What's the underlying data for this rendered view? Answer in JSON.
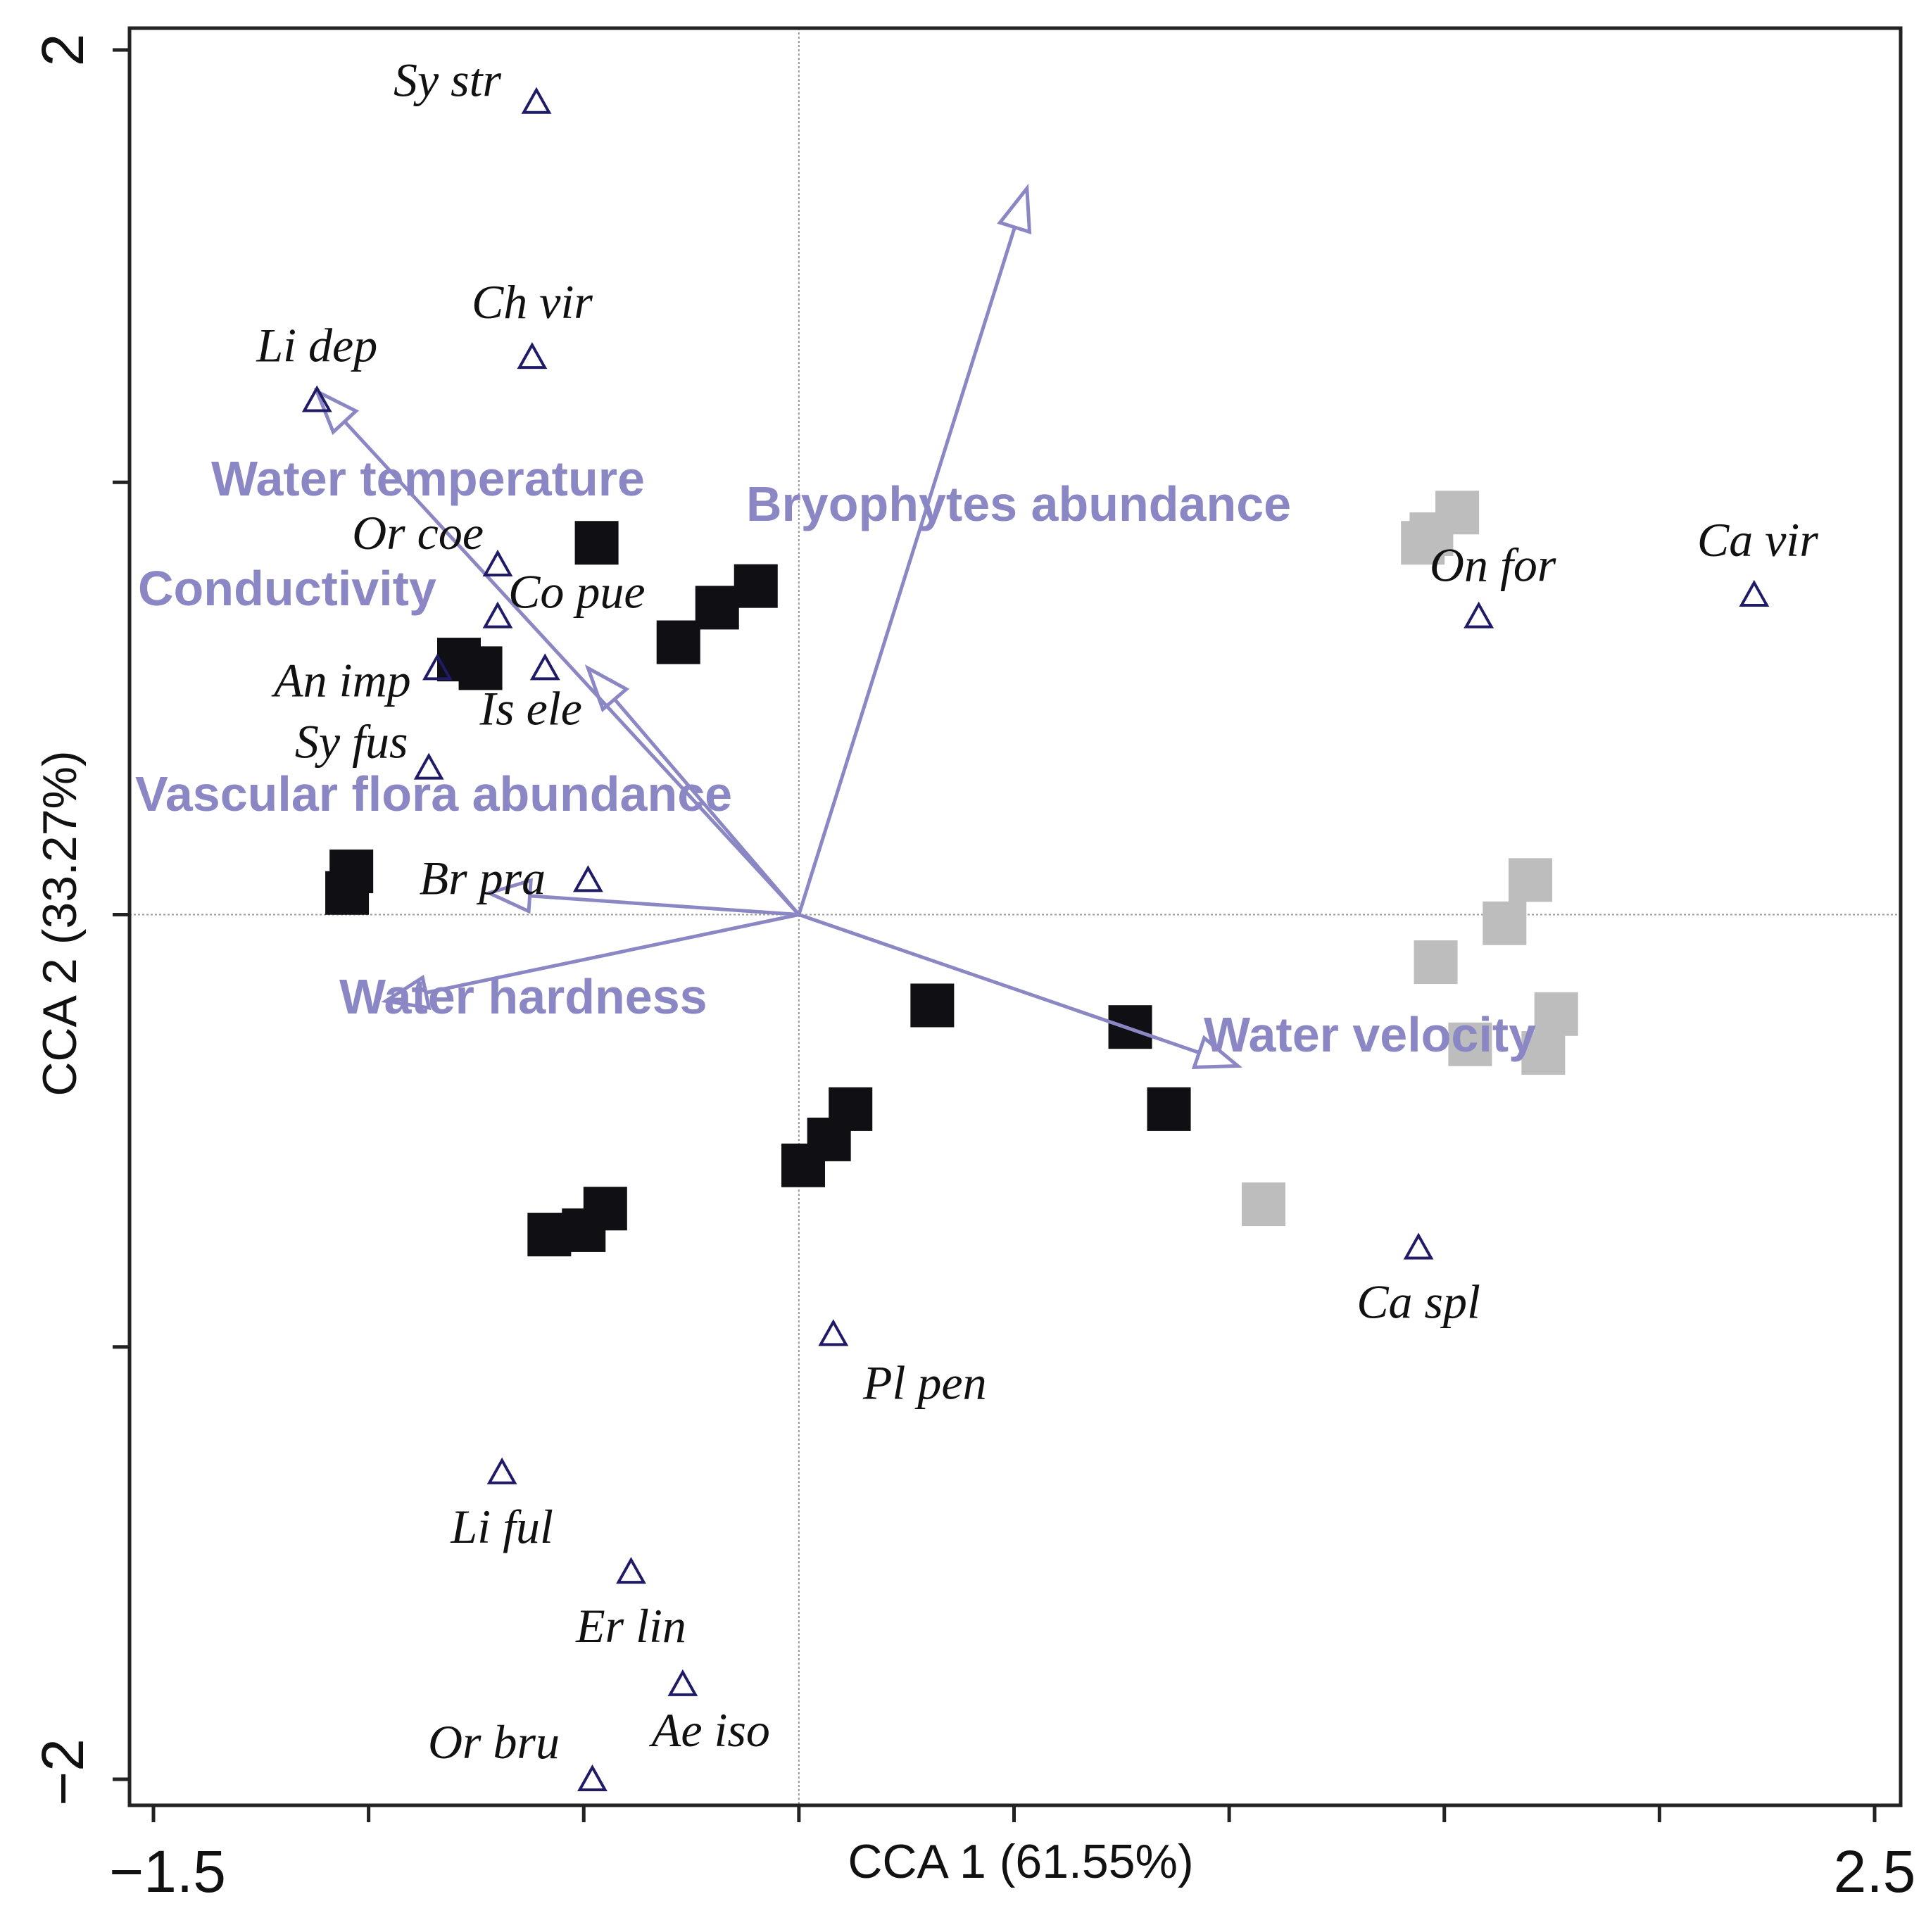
{
  "chart_data": {
    "type": "scatter",
    "title": "",
    "xlabel": "CCA 1 (61.55%)",
    "ylabel": "CCA 2 (33.27%)",
    "xlim": [
      -1.5,
      2.5
    ],
    "ylim": [
      -2,
      2
    ],
    "x_tick_labels": [
      "−1.5",
      "2.5"
    ],
    "y_tick_labels": [
      "2",
      "−2"
    ],
    "minor_x_ticks": [
      -1.5,
      -1.0,
      -0.5,
      0,
      0.5,
      1.0,
      1.5,
      2.0,
      2.5
    ],
    "minor_y_ticks": [
      -2,
      -1,
      0,
      1,
      2
    ],
    "reference_lines": {
      "x": 0,
      "y": 0
    },
    "grid": false,
    "legend": "none",
    "colors": {
      "vector": "#8a87c4",
      "species_marker": "#1f1b66",
      "site_dark": "#0f0f14",
      "site_light": "#bdbdbd",
      "axis": "#222222"
    },
    "environmental_vectors": [
      {
        "name": "Water temperature",
        "x": -0.49,
        "y": 0.57
      },
      {
        "name": "Conductivity",
        "x": -1.12,
        "y": 1.21
      },
      {
        "name": "Bryophytes abundance",
        "x": 0.53,
        "y": 1.68
      },
      {
        "name": "Vascular flora abundance",
        "x": -0.72,
        "y": 0.05
      },
      {
        "name": "Water hardness",
        "x": -0.96,
        "y": -0.2
      },
      {
        "name": "Water velocity",
        "x": 1.02,
        "y": -0.35
      }
    ],
    "species": [
      {
        "name": "Sy str",
        "x": -0.61,
        "y": 1.88
      },
      {
        "name": "Ch vir",
        "x": -0.62,
        "y": 1.29
      },
      {
        "name": "Li dep",
        "x": -1.12,
        "y": 1.19
      },
      {
        "name": "Or coe",
        "x": -0.7,
        "y": 0.81
      },
      {
        "name": "Co pue",
        "x": -0.7,
        "y": 0.69
      },
      {
        "name": "An imp",
        "x": -0.84,
        "y": 0.57
      },
      {
        "name": "Is ele",
        "x": -0.59,
        "y": 0.57
      },
      {
        "name": "Sy fus",
        "x": -0.86,
        "y": 0.34
      },
      {
        "name": "Br pra",
        "x": -0.49,
        "y": 0.08
      },
      {
        "name": "On for",
        "x": 1.58,
        "y": 0.69
      },
      {
        "name": "Ca vir",
        "x": 2.22,
        "y": 0.74
      },
      {
        "name": "Ca spl",
        "x": 1.44,
        "y": -0.77
      },
      {
        "name": "Pl pen",
        "x": 0.08,
        "y": -0.97
      },
      {
        "name": "Li ful",
        "x": -0.69,
        "y": -1.29
      },
      {
        "name": "Er lin",
        "x": -0.39,
        "y": -1.52
      },
      {
        "name": "Ae iso",
        "x": -0.27,
        "y": -1.78
      },
      {
        "name": "Or bru",
        "x": -0.48,
        "y": -2.0
      }
    ],
    "sites": [
      {
        "group": "dark",
        "x": -0.47,
        "y": 0.86
      },
      {
        "group": "dark",
        "x": -0.1,
        "y": 0.76
      },
      {
        "group": "dark",
        "x": -0.19,
        "y": 0.71
      },
      {
        "group": "dark",
        "x": -0.28,
        "y": 0.63
      },
      {
        "group": "dark",
        "x": -0.79,
        "y": 0.59
      },
      {
        "group": "dark",
        "x": -0.74,
        "y": 0.57
      },
      {
        "group": "dark",
        "x": -1.04,
        "y": 0.1
      },
      {
        "group": "dark",
        "x": -1.05,
        "y": 0.05
      },
      {
        "group": "dark",
        "x": 0.31,
        "y": -0.21
      },
      {
        "group": "dark",
        "x": 0.77,
        "y": -0.26
      },
      {
        "group": "dark",
        "x": 0.86,
        "y": -0.45
      },
      {
        "group": "dark",
        "x": 0.12,
        "y": -0.45
      },
      {
        "group": "dark",
        "x": 0.07,
        "y": -0.52
      },
      {
        "group": "dark",
        "x": 0.01,
        "y": -0.58
      },
      {
        "group": "dark",
        "x": -0.45,
        "y": -0.68
      },
      {
        "group": "dark",
        "x": -0.5,
        "y": -0.73
      },
      {
        "group": "dark",
        "x": -0.58,
        "y": -0.74
      },
      {
        "group": "light",
        "x": 1.53,
        "y": 0.93
      },
      {
        "group": "light",
        "x": 1.47,
        "y": 0.88
      },
      {
        "group": "light",
        "x": 1.45,
        "y": 0.86
      },
      {
        "group": "light",
        "x": 1.7,
        "y": 0.08
      },
      {
        "group": "light",
        "x": 1.64,
        "y": -0.02
      },
      {
        "group": "light",
        "x": 1.48,
        "y": -0.11
      },
      {
        "group": "light",
        "x": 1.56,
        "y": -0.3
      },
      {
        "group": "light",
        "x": 1.76,
        "y": -0.23
      },
      {
        "group": "light",
        "x": 1.73,
        "y": -0.32
      },
      {
        "group": "light",
        "x": 1.08,
        "y": -0.67
      }
    ]
  }
}
